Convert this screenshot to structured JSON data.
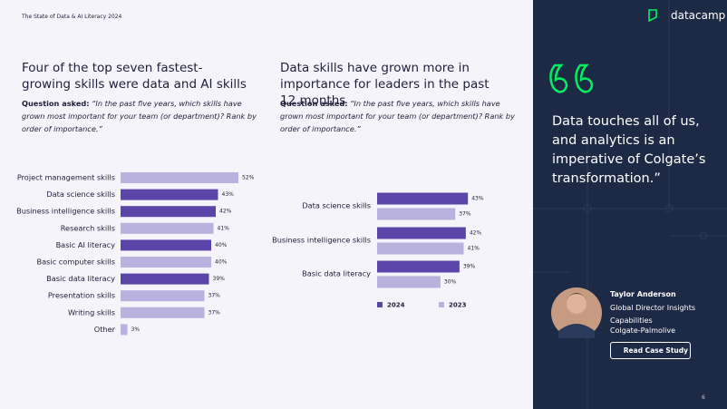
{
  "header": {
    "report": "The State of Data & AI Literacy 2024",
    "page": "6"
  },
  "chart_data": [
    {
      "type": "bar",
      "orientation": "horizontal",
      "title": "Four of the top seven fastest-growing skills were data and AI skills",
      "question_label": "Question asked:",
      "question": "“In the past five years, which skills have grown most important for your team (or department)? Rank by order of importance.”",
      "categories": [
        "Project management skills",
        "Data science skills",
        "Business intelligence skills",
        "Research skills",
        "Basic AI literacy",
        "Basic computer skills",
        "Basic data literacy",
        "Presentation skills",
        "Writing skills",
        "Other"
      ],
      "values": [
        52,
        43,
        42,
        41,
        40,
        40,
        39,
        37,
        37,
        3
      ],
      "value_labels": [
        "52%",
        "43%",
        "42%",
        "41%",
        "40%",
        "40%",
        "39%",
        "37%",
        "37%",
        "3%"
      ],
      "colors": [
        "#b9b1de",
        "#5b45a8",
        "#5b45a8",
        "#b9b1de",
        "#5b45a8",
        "#b9b1de",
        "#5b45a8",
        "#b9b1de",
        "#b9b1de",
        "#b9b1de"
      ]
    },
    {
      "type": "grouped-bar",
      "orientation": "horizontal",
      "title": "Data skills have grown more in importance for leaders in the past 12 months",
      "question_label": "Question asked:",
      "question": "“In the past five years, which skills have grown most important for your team (or department)? Rank by order of importance.”",
      "categories": [
        "Data science skills",
        "Business intelligence skills",
        "Basic data literacy"
      ],
      "series": [
        {
          "name": "2024",
          "color": "#5b45a8",
          "values": [
            43,
            42,
            39
          ],
          "value_labels": [
            "43%",
            "42%",
            "39%"
          ]
        },
        {
          "name": "2023",
          "color": "#b9b1de",
          "values": [
            37,
            41,
            30
          ],
          "value_labels": [
            "37%",
            "41%",
            "30%"
          ]
        }
      ]
    }
  ],
  "sidebar": {
    "logo": "datacamp",
    "quote": "Data touches all of us, and analytics is an imperative of Colgate’s transformation.”",
    "person": {
      "name": "Taylor Anderson",
      "role": "Global Director Insights Capabilities",
      "company": "Colgate-Palmolive"
    },
    "button": "Read Case Study"
  }
}
